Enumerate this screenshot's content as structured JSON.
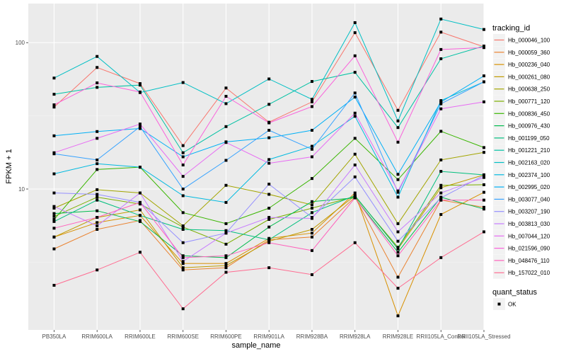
{
  "chart_data": {
    "type": "line",
    "title": "",
    "xlabel": "sample_name",
    "ylabel": "FPKM + 1",
    "y_scale": "log10",
    "ylim": [
      1.09,
      185
    ],
    "y_ticks": [
      10,
      100
    ],
    "y_tick_labels": [
      "10",
      "100"
    ],
    "grid": true,
    "legend_position": "right",
    "categories": [
      "PB350LA",
      "RRIM600LA",
      "RRIM600LE",
      "RRIM600SE",
      "RRIM600PE",
      "RRIM901LA",
      "RRIM928BA",
      "RRIM928LA",
      "RRIM928LE",
      "RRII105LA_Control",
      "RRII105LA_Stressed"
    ],
    "series": [
      {
        "name": "Hb_000046_100",
        "color": "#F8766D",
        "values": [
          36.3,
          67.7,
          52.5,
          19.8,
          49.0,
          28.6,
          39.4,
          117,
          34.5,
          118,
          93.7
        ]
      },
      {
        "name": "Hb_000059_360",
        "color": "#EA8331",
        "values": [
          3.9,
          5.3,
          6.1,
          2.8,
          2.9,
          4.5,
          4.7,
          8.8,
          2.5,
          8.4,
          7.5
        ]
      },
      {
        "name": "Hb_000236_040",
        "color": "#D89000",
        "values": [
          4.7,
          5.9,
          6.6,
          3.1,
          3.1,
          4.6,
          5.0,
          9.4,
          1.36,
          6.7,
          9.5
        ]
      },
      {
        "name": "Hb_000261_080",
        "color": "#C09B00",
        "values": [
          4.7,
          6.4,
          7.2,
          2.9,
          3.0,
          4.4,
          5.3,
          9.0,
          3.9,
          10.2,
          12.5
        ]
      },
      {
        "name": "Hb_000638_250",
        "color": "#A3A500",
        "values": [
          7.4,
          9.9,
          9.4,
          5.6,
          10.6,
          9.2,
          7.8,
          17.3,
          5.8,
          15.8,
          17.8
        ]
      },
      {
        "name": "Hb_000771_120",
        "color": "#7CAE00",
        "values": [
          6.5,
          8.8,
          7.9,
          5.5,
          4.2,
          6.2,
          7.4,
          8.9,
          4.0,
          10.6,
          10.7
        ]
      },
      {
        "name": "Hb_000836_450",
        "color": "#39B600",
        "values": [
          6.2,
          13.6,
          14.1,
          6.9,
          5.8,
          7.4,
          11.8,
          22.2,
          11.6,
          24.8,
          19.2
        ]
      },
      {
        "name": "Hb_000976_430",
        "color": "#00BB4E",
        "values": [
          6.8,
          7.1,
          6.0,
          3.5,
          3.4,
          5.5,
          8.2,
          8.7,
          3.7,
          8.8,
          7.3
        ]
      },
      {
        "name": "Hb_001199_050",
        "color": "#00BF7D",
        "values": [
          6.0,
          8.4,
          6.6,
          5.3,
          5.2,
          4.5,
          6.9,
          9.0,
          3.9,
          13.2,
          12.5
        ]
      },
      {
        "name": "Hb_001221_210",
        "color": "#00C1A3",
        "values": [
          44.4,
          49.5,
          51.3,
          17.7,
          26.7,
          37.9,
          54.3,
          62.7,
          26.3,
          77.6,
          94.8
        ]
      },
      {
        "name": "Hb_002163_020",
        "color": "#00BFC4",
        "values": [
          57.3,
          80.5,
          45.6,
          53.4,
          38.3,
          56.5,
          41.0,
          137,
          29.2,
          145,
          123
        ]
      },
      {
        "name": "Hb_002374_100",
        "color": "#00BAE0",
        "values": [
          12.7,
          14.9,
          14.1,
          9.0,
          8.1,
          15.9,
          19.6,
          31.4,
          8.8,
          40.2,
          54.0
        ]
      },
      {
        "name": "Hb_002995_020",
        "color": "#00B0F6",
        "values": [
          23.1,
          24.7,
          25.9,
          16.6,
          21.0,
          22.4,
          25.2,
          42.5,
          12.6,
          39.3,
          59.3
        ]
      },
      {
        "name": "Hb_003077_040",
        "color": "#35A2FF",
        "values": [
          17.4,
          15.8,
          26.7,
          10.0,
          15.7,
          25.2,
          18.7,
          45.3,
          9.5,
          38.2,
          54.0
        ]
      },
      {
        "name": "Hb_003207_190",
        "color": "#9590FF",
        "values": [
          9.4,
          9.2,
          8.1,
          4.3,
          5.0,
          10.8,
          6.4,
          12.1,
          4.4,
          8.7,
          12.4
        ]
      },
      {
        "name": "Hb_003813_030",
        "color": "#C77CFF",
        "values": [
          7.6,
          5.6,
          9.4,
          3.2,
          5.0,
          6.4,
          6.3,
          14.6,
          5.1,
          9.4,
          12.0
        ]
      },
      {
        "name": "Hb_007044_120",
        "color": "#E76BF3",
        "values": [
          17.7,
          22.2,
          27.8,
          12.2,
          20.8,
          15.0,
          16.6,
          33.0,
          9.7,
          35.3,
          39.4
        ]
      },
      {
        "name": "Hb_021596_090",
        "color": "#FA62DB",
        "values": [
          37.6,
          53.1,
          46.0,
          14.6,
          43.0,
          28.3,
          36.6,
          81.3,
          20.9,
          89.8,
          92.5
        ]
      },
      {
        "name": "Hb_048476_110",
        "color": "#FF62BC",
        "values": [
          5.4,
          6.4,
          8.1,
          3.4,
          3.5,
          4.3,
          3.8,
          8.7,
          3.5,
          8.4,
          8.4
        ]
      },
      {
        "name": "Hb_157022_010",
        "color": "#FF6C91",
        "values": [
          2.2,
          2.8,
          3.7,
          1.52,
          2.7,
          2.9,
          2.6,
          4.3,
          2.1,
          3.4,
          5.1
        ]
      }
    ],
    "legends": [
      {
        "title": "tracking_id",
        "type": "color"
      },
      {
        "title": "quant_status",
        "type": "shape",
        "entries": [
          "OK"
        ]
      }
    ],
    "point_shape": "square",
    "point_color": "#000000"
  }
}
